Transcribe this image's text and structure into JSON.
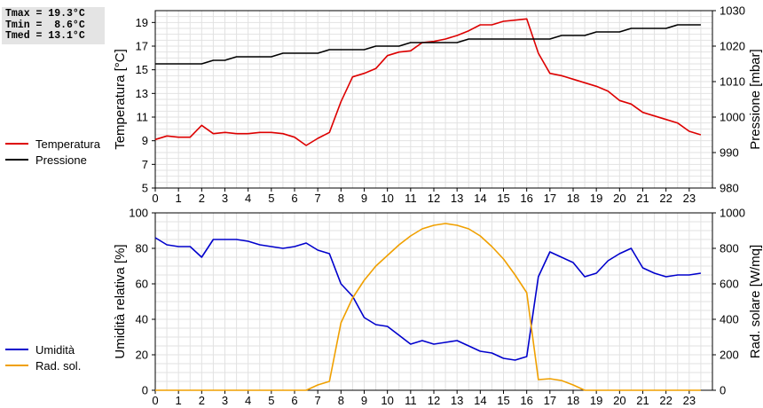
{
  "stats": {
    "tmax": "Tmax = 19.3°C",
    "tmin": "Tmin =  8.6°C",
    "tmed": "Tmed = 13.1°C"
  },
  "legend_top": [
    {
      "label": "Temperatura",
      "color": "#dd0000"
    },
    {
      "label": "Pressione",
      "color": "#000000"
    }
  ],
  "legend_bottom": [
    {
      "label": "Umidità",
      "color": "#0000cc"
    },
    {
      "label": "Rad. sol.",
      "color": "#f0a000"
    }
  ],
  "chart_data": [
    {
      "type": "line",
      "xlim": [
        0,
        24
      ],
      "xticks": [
        0,
        1,
        2,
        3,
        4,
        5,
        6,
        7,
        8,
        9,
        10,
        11,
        12,
        13,
        14,
        15,
        16,
        17,
        18,
        19,
        20,
        21,
        22,
        23
      ],
      "grid": true,
      "left_axis": {
        "label": "Temperatura [°C]",
        "ylim": [
          5,
          20
        ],
        "ticks": [
          5,
          7,
          9,
          11,
          13,
          15,
          17,
          19
        ]
      },
      "right_axis": {
        "label": "Pressione [mbar]",
        "ylim": [
          980,
          1030
        ],
        "ticks": [
          980,
          990,
          1000,
          1010,
          1020,
          1030
        ]
      },
      "series": [
        {
          "name": "Temperatura",
          "axis": "left",
          "color": "#dd0000",
          "x": [
            0,
            0.5,
            1,
            1.5,
            2,
            2.5,
            3,
            3.5,
            4,
            4.5,
            5,
            5.5,
            6,
            6.5,
            7,
            7.5,
            8,
            8.5,
            9,
            9.5,
            10,
            10.5,
            11,
            11.5,
            12,
            12.5,
            13,
            13.5,
            14,
            14.5,
            15,
            15.5,
            16,
            16.5,
            17,
            17.5,
            18,
            18.5,
            19,
            19.5,
            20,
            20.5,
            21,
            21.5,
            22,
            22.5,
            23,
            23.5
          ],
          "y": [
            9.1,
            9.4,
            9.3,
            9.3,
            10.3,
            9.6,
            9.7,
            9.6,
            9.6,
            9.7,
            9.7,
            9.6,
            9.3,
            8.6,
            9.2,
            9.7,
            12.3,
            14.4,
            14.7,
            15.1,
            16.2,
            16.5,
            16.6,
            17.3,
            17.4,
            17.6,
            17.9,
            18.3,
            18.8,
            18.8,
            19.1,
            19.2,
            19.3,
            16.4,
            14.7,
            14.5,
            14.2,
            13.9,
            13.6,
            13.2,
            12.4,
            12.1,
            11.4,
            11.1,
            10.8,
            10.5,
            9.8,
            9.5
          ]
        },
        {
          "name": "Pressione",
          "axis": "right",
          "color": "#000000",
          "x": [
            0,
            0.5,
            1,
            1.5,
            2,
            2.5,
            3,
            3.5,
            4,
            4.5,
            5,
            5.5,
            6,
            6.5,
            7,
            7.5,
            8,
            8.5,
            9,
            9.5,
            10,
            10.5,
            11,
            11.5,
            12,
            12.5,
            13,
            13.5,
            14,
            14.5,
            15,
            15.5,
            16,
            16.5,
            17,
            17.5,
            18,
            18.5,
            19,
            19.5,
            20,
            20.5,
            21,
            21.5,
            22,
            22.5,
            23,
            23.5
          ],
          "y": [
            1015,
            1015,
            1015,
            1015,
            1015,
            1016,
            1016,
            1017,
            1017,
            1017,
            1017,
            1018,
            1018,
            1018,
            1018,
            1019,
            1019,
            1019,
            1019,
            1020,
            1020,
            1020,
            1021,
            1021,
            1021,
            1021,
            1021,
            1022,
            1022,
            1022,
            1022,
            1022,
            1022,
            1022,
            1022,
            1023,
            1023,
            1023,
            1024,
            1024,
            1024,
            1025,
            1025,
            1025,
            1025,
            1026,
            1026,
            1026
          ]
        }
      ]
    },
    {
      "type": "line",
      "xlim": [
        0,
        24
      ],
      "xticks": [
        0,
        1,
        2,
        3,
        4,
        5,
        6,
        7,
        8,
        9,
        10,
        11,
        12,
        13,
        14,
        15,
        16,
        17,
        18,
        19,
        20,
        21,
        22,
        23
      ],
      "grid": true,
      "left_axis": {
        "label": "Umidità relativa [%]",
        "ylim": [
          0,
          100
        ],
        "ticks": [
          0,
          20,
          40,
          60,
          80,
          100
        ]
      },
      "right_axis": {
        "label": "Rad. solare [W/mq]",
        "ylim": [
          0,
          1000
        ],
        "ticks": [
          0,
          200,
          400,
          600,
          800,
          1000
        ]
      },
      "series": [
        {
          "name": "Umidità",
          "axis": "left",
          "color": "#0000cc",
          "x": [
            0,
            0.5,
            1,
            1.5,
            2,
            2.5,
            3,
            3.5,
            4,
            4.5,
            5,
            5.5,
            6,
            6.5,
            7,
            7.5,
            8,
            8.5,
            9,
            9.5,
            10,
            10.5,
            11,
            11.5,
            12,
            12.5,
            13,
            13.5,
            14,
            14.5,
            15,
            15.5,
            16,
            16.5,
            17,
            17.5,
            18,
            18.5,
            19,
            19.5,
            20,
            20.5,
            21,
            21.5,
            22,
            22.5,
            23,
            23.5
          ],
          "y": [
            86,
            82,
            81,
            81,
            75,
            85,
            85,
            85,
            84,
            82,
            81,
            80,
            81,
            83,
            79,
            77,
            60,
            53,
            41,
            37,
            36,
            31,
            26,
            28,
            26,
            27,
            28,
            25,
            22,
            21,
            18,
            17,
            19,
            64,
            78,
            75,
            72,
            64,
            66,
            73,
            77,
            80,
            69,
            66,
            64,
            65,
            65,
            66
          ]
        },
        {
          "name": "Rad. sol.",
          "axis": "right",
          "color": "#f0a000",
          "x": [
            0,
            0.5,
            1,
            1.5,
            2,
            2.5,
            3,
            3.5,
            4,
            4.5,
            5,
            5.5,
            6,
            6.5,
            7,
            7.5,
            8,
            8.5,
            9,
            9.5,
            10,
            10.5,
            11,
            11.5,
            12,
            12.5,
            13,
            13.5,
            14,
            14.5,
            15,
            15.5,
            16,
            16.5,
            17,
            17.5,
            18,
            18.5,
            19,
            19.5,
            20,
            20.5,
            21,
            21.5,
            22,
            22.5,
            23,
            23.5
          ],
          "y": [
            0,
            0,
            0,
            0,
            0,
            0,
            0,
            0,
            0,
            0,
            0,
            0,
            0,
            0,
            30,
            50,
            380,
            520,
            620,
            700,
            760,
            820,
            870,
            910,
            930,
            940,
            930,
            910,
            870,
            810,
            740,
            650,
            550,
            60,
            65,
            55,
            30,
            0,
            0,
            0,
            0,
            0,
            0,
            0,
            0,
            0,
            0,
            0
          ]
        }
      ]
    }
  ]
}
